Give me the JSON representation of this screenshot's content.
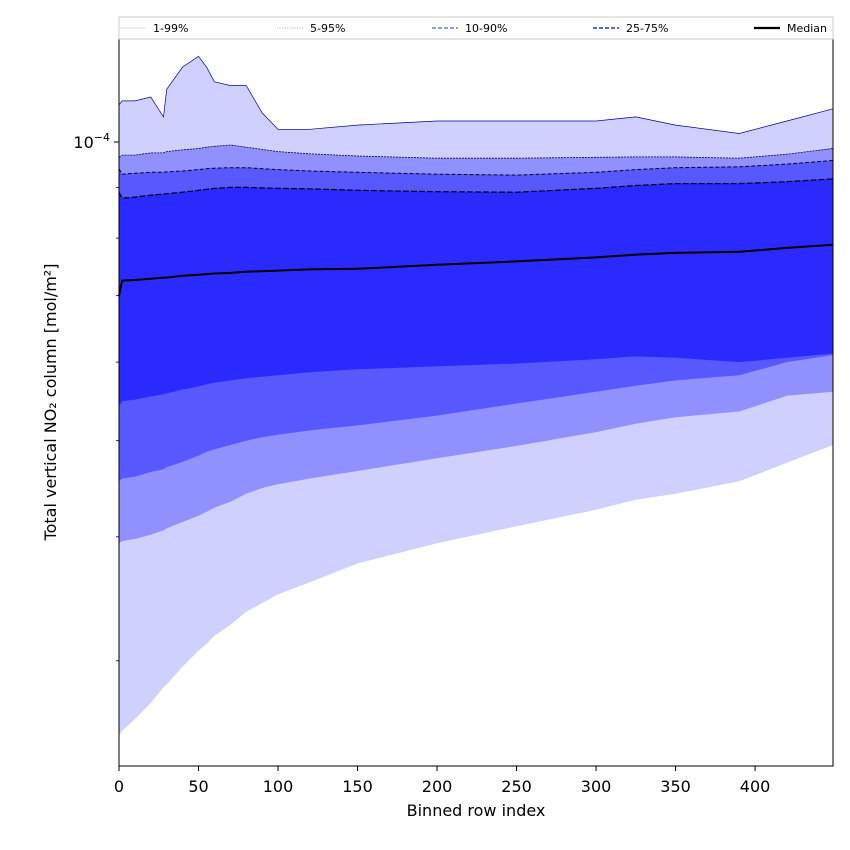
{
  "chart_data": {
    "type": "area",
    "title": "",
    "xlabel": "Binned row index",
    "ylabel": "Total vertical NO₂ column [mol/m²]",
    "xlim": [
      0,
      449
    ],
    "ylim": [
      2.35e-05,
      0.000127
    ],
    "yscale": "log",
    "x_ticks": [
      0,
      50,
      100,
      150,
      200,
      250,
      300,
      350,
      400
    ],
    "y_tick_label": {
      "value": 0.0001,
      "base": "10",
      "exponent": "−4"
    },
    "legend": {
      "placement": "top",
      "entries": [
        {
          "label": "1-99%",
          "color": "#d0d0ff",
          "style": "solid"
        },
        {
          "label": "5-95%",
          "color": "#9090ff",
          "style": "dotted"
        },
        {
          "label": "10-90%",
          "color": "#5858ff",
          "style": "dashed"
        },
        {
          "label": "25-75%",
          "color": "#2a2aff",
          "style": "dashed"
        },
        {
          "label": "Median",
          "color": "#000000",
          "style": "solid"
        }
      ]
    },
    "x": [
      0,
      2,
      10,
      20,
      28,
      30,
      40,
      50,
      55,
      60,
      70,
      80,
      90,
      100,
      120,
      150,
      200,
      250,
      300,
      325,
      350,
      390,
      420,
      449
    ],
    "bands": [
      {
        "name": "1-99%",
        "color": "#d0d0ff",
        "upper": [
          0.000109,
          0.00011,
          0.00011,
          0.000111,
          0.000106,
          0.000113,
          0.000119,
          0.000122,
          0.000119,
          0.000115,
          0.000114,
          0.000114,
          0.000107,
          0.000103,
          0.000103,
          0.000104,
          0.000105,
          0.000105,
          0.000105,
          0.000106,
          0.000104,
          0.000102,
          0.000105,
          0.000108
        ],
        "lower": [
          2.52e-05,
          2.55e-05,
          2.62e-05,
          2.72e-05,
          2.82e-05,
          2.84e-05,
          2.96e-05,
          3.07e-05,
          3.12e-05,
          3.18e-05,
          3.26e-05,
          3.36e-05,
          3.43e-05,
          3.5e-05,
          3.6e-05,
          3.76e-05,
          3.94e-05,
          4.1e-05,
          4.26e-05,
          4.36e-05,
          4.42e-05,
          4.55e-05,
          4.75e-05,
          4.95e-05
        ]
      },
      {
        "name": "5-95%",
        "color": "#9090ff",
        "upper": [
          9.65e-05,
          9.7e-05,
          9.7e-05,
          9.75e-05,
          9.75e-05,
          9.78e-05,
          9.82e-05,
          9.85e-05,
          9.88e-05,
          9.9e-05,
          9.93e-05,
          9.88e-05,
          9.83e-05,
          9.78e-05,
          9.73e-05,
          9.68e-05,
          9.63e-05,
          9.63e-05,
          9.65e-05,
          9.66e-05,
          9.66e-05,
          9.63e-05,
          9.72e-05,
          9.85e-05
        ]
      },
      {
        "name": "5-95% lower",
        "lower": [
          3.94e-05,
          3.96e-05,
          3.98e-05,
          4.02e-05,
          4.06e-05,
          4.08e-05,
          4.14e-05,
          4.2e-05,
          4.24e-05,
          4.28e-05,
          4.34e-05,
          4.42e-05,
          4.48e-05,
          4.52e-05,
          4.58e-05,
          4.66e-05,
          4.8e-05,
          4.94e-05,
          5.1e-05,
          5.2e-05,
          5.28e-05,
          5.35e-05,
          5.55e-05,
          5.6e-05
        ]
      },
      {
        "name": "10-90%",
        "color": "#5858ff",
        "upper": [
          9.4e-05,
          9.28e-05,
          9.3e-05,
          9.32e-05,
          9.32e-05,
          9.33e-05,
          9.35e-05,
          9.38e-05,
          9.4e-05,
          9.41e-05,
          9.42e-05,
          9.42e-05,
          9.4e-05,
          9.38e-05,
          9.35e-05,
          9.32e-05,
          9.28e-05,
          9.26e-05,
          9.32e-05,
          9.38e-05,
          9.42e-05,
          9.44e-05,
          9.5e-05,
          9.58e-05
        ],
        "lower": [
          4.55e-05,
          4.58e-05,
          4.6e-05,
          4.65e-05,
          4.68e-05,
          4.7e-05,
          4.76e-05,
          4.83e-05,
          4.87e-05,
          4.9e-05,
          4.95e-05,
          5e-05,
          5.04e-05,
          5.07e-05,
          5.12e-05,
          5.18e-05,
          5.3e-05,
          5.45e-05,
          5.6e-05,
          5.68e-05,
          5.75e-05,
          5.82e-05,
          6e-05,
          6.1e-05
        ]
      },
      {
        "name": "25-75%",
        "color": "#2a2aff",
        "upper": [
          8.9e-05,
          8.78e-05,
          8.8e-05,
          8.84e-05,
          8.86e-05,
          8.87e-05,
          8.9e-05,
          8.94e-05,
          8.96e-05,
          8.98e-05,
          9e-05,
          9e-05,
          8.99e-05,
          8.98e-05,
          8.97e-05,
          8.94e-05,
          8.91e-05,
          8.9e-05,
          8.98e-05,
          9.04e-05,
          9.08e-05,
          9.08e-05,
          9.12e-05,
          9.18e-05
        ],
        "lower": [
          5.42e-05,
          5.48e-05,
          5.5e-05,
          5.54e-05,
          5.57e-05,
          5.58e-05,
          5.63e-05,
          5.67e-05,
          5.7e-05,
          5.72e-05,
          5.75e-05,
          5.78e-05,
          5.8e-05,
          5.82e-05,
          5.86e-05,
          5.9e-05,
          5.94e-05,
          5.98e-05,
          6.04e-05,
          6.08e-05,
          6.06e-05,
          6e-05,
          6.06e-05,
          6.12e-05
        ]
      }
    ],
    "median": [
      7e-05,
      7.25e-05,
      7.26e-05,
      7.28e-05,
      7.3e-05,
      7.3e-05,
      7.33e-05,
      7.35e-05,
      7.36e-05,
      7.37e-05,
      7.38e-05,
      7.4e-05,
      7.41e-05,
      7.42e-05,
      7.44e-05,
      7.45e-05,
      7.52e-05,
      7.58e-05,
      7.65e-05,
      7.7e-05,
      7.73e-05,
      7.75e-05,
      7.82e-05,
      7.88e-05
    ]
  }
}
